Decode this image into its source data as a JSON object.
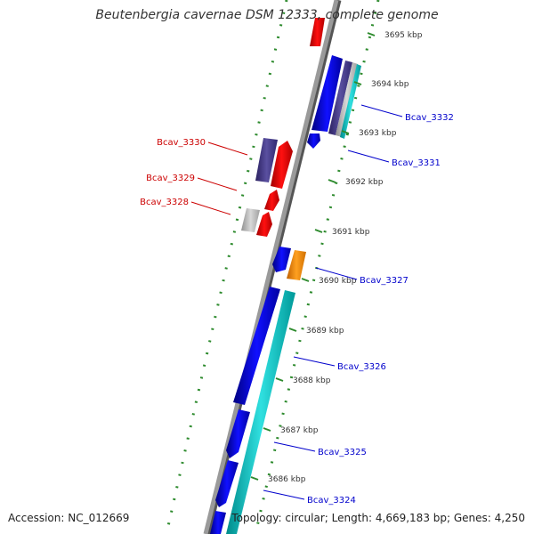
{
  "title": "Beutenbergia cavernae DSM 12333, complete genome",
  "accession": "Accession: NC_012669",
  "summary": "Topology: circular; Length: 4,669,183 bp; Genes: 4,250",
  "colors": {
    "backbone": "#8c8c8c",
    "tick": "#2e8b2e",
    "label_left": "#cc0000",
    "label_right": "#0000cc",
    "kbp_text": "#333333"
  },
  "kbp_ticks": [
    "3695 kbp",
    "3694 kbp",
    "3693 kbp",
    "3692 kbp",
    "3691 kbp",
    "3690 kbp",
    "3689 kbp",
    "3688 kbp",
    "3687 kbp",
    "3686 kbp"
  ],
  "gene_labels": [
    {
      "text": "Bcav_3330",
      "side": "left"
    },
    {
      "text": "Bcav_3329",
      "side": "left"
    },
    {
      "text": "Bcav_3328",
      "side": "left"
    },
    {
      "text": "Bcav_3332",
      "side": "right"
    },
    {
      "text": "Bcav_3331",
      "side": "right"
    },
    {
      "text": "Bcav_3327",
      "side": "right"
    },
    {
      "text": "Bcav_3326",
      "side": "right"
    },
    {
      "text": "Bcav_3325",
      "side": "right"
    },
    {
      "text": "Bcav_3324",
      "side": "right"
    }
  ]
}
